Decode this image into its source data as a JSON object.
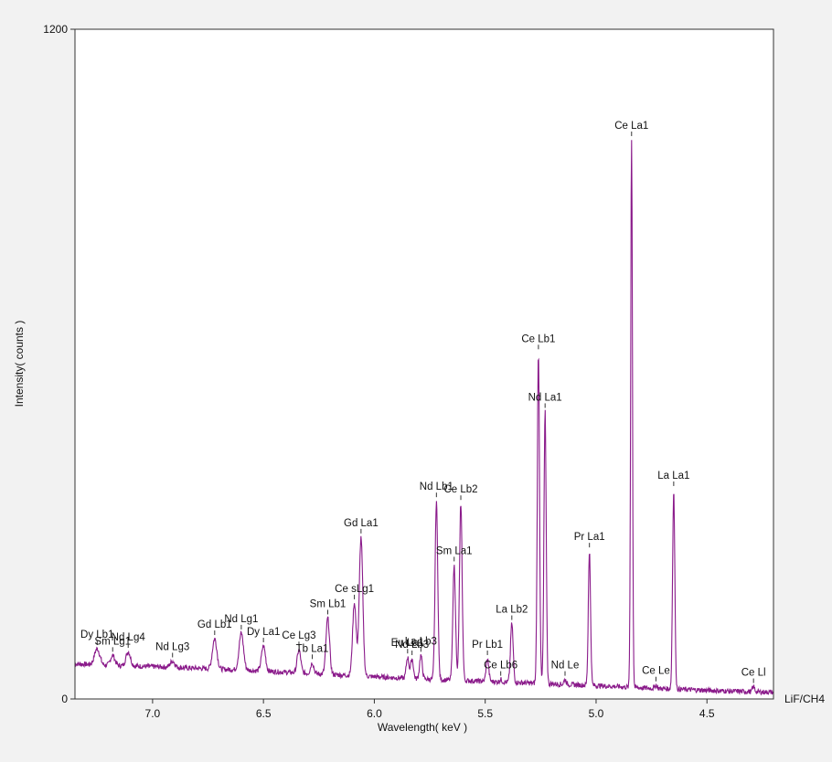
{
  "chart_data": {
    "type": "line",
    "title": "",
    "xlabel": "Wavelength( keV )",
    "ylabel": "Intensity( counts )",
    "crystal_label": "LiF/CH4",
    "x_axis_reversed": true,
    "xlim": [
      7.35,
      4.2
    ],
    "ylim": [
      0,
      1200
    ],
    "x_ticks": [
      7.0,
      6.5,
      6.0,
      5.5,
      5.0,
      4.5
    ],
    "x_tick_labels": [
      "7.0",
      "6.5",
      "6.0",
      "5.5",
      "5.0",
      "4.5"
    ],
    "y_ticks": [
      0,
      1200
    ],
    "y_tick_labels": [
      "0",
      "1200"
    ],
    "grid": false,
    "colors": {
      "series": "#8a1a8a",
      "plot_bg": "#ffffff",
      "page_bg": "#f2f2f2",
      "frame": "#333333"
    },
    "baseline": [
      [
        7.35,
        63
      ],
      [
        7.2,
        60
      ],
      [
        7.0,
        58
      ],
      [
        6.8,
        55
      ],
      [
        6.6,
        52
      ],
      [
        6.4,
        48
      ],
      [
        6.2,
        44
      ],
      [
        6.0,
        40
      ],
      [
        5.8,
        36
      ],
      [
        5.6,
        33
      ],
      [
        5.4,
        30
      ],
      [
        5.2,
        27
      ],
      [
        5.0,
        24
      ],
      [
        4.8,
        20
      ],
      [
        4.6,
        17
      ],
      [
        4.4,
        14
      ],
      [
        4.2,
        12
      ]
    ],
    "peaks": [
      {
        "label": "Dy Lb1",
        "x": 7.25,
        "y": 90,
        "w": 0.012
      },
      {
        "label": "Sm Lg1",
        "x": 7.18,
        "y": 78,
        "w": 0.01
      },
      {
        "label": "Nd Lg4",
        "x": 7.11,
        "y": 85,
        "w": 0.01
      },
      {
        "label": "Nd Lg3",
        "x": 6.91,
        "y": 68,
        "w": 0.01
      },
      {
        "label": "Gd Lb1",
        "x": 6.72,
        "y": 108,
        "w": 0.01
      },
      {
        "label": "Nd Lg1",
        "x": 6.6,
        "y": 118,
        "w": 0.01
      },
      {
        "label": "Dy La1",
        "x": 6.5,
        "y": 95,
        "w": 0.009
      },
      {
        "label": "Ce Lg3",
        "x": 6.34,
        "y": 88,
        "w": 0.008
      },
      {
        "label": "Tb La1",
        "x": 6.28,
        "y": 65,
        "w": 0.007
      },
      {
        "label": "Sm Lb1",
        "x": 6.21,
        "y": 145,
        "w": 0.008
      },
      {
        "label": "Ce sLg1",
        "x": 6.09,
        "y": 172,
        "w": 0.008
      },
      {
        "label": "Gd La1",
        "x": 6.06,
        "y": 290,
        "w": 0.008
      },
      {
        "label": "Eu La1",
        "x": 5.85,
        "y": 75,
        "w": 0.006
      },
      {
        "label": "Nd Lb3",
        "x": 5.83,
        "y": 72,
        "w": 0.006
      },
      {
        "label": "La Lb3",
        "x": 5.79,
        "y": 78,
        "w": 0.006
      },
      {
        "label": "Nd Lb1",
        "x": 5.72,
        "y": 355,
        "w": 0.006
      },
      {
        "label": "Sm La1",
        "x": 5.64,
        "y": 240,
        "w": 0.006
      },
      {
        "label": "Ce Lb2",
        "x": 5.61,
        "y": 350,
        "w": 0.006
      },
      {
        "label": "Pr Lb1",
        "x": 5.49,
        "y": 72,
        "w": 0.006
      },
      {
        "label": "Ce Lb6",
        "x": 5.43,
        "y": 35,
        "w": 0.005
      },
      {
        "label": "La Lb2",
        "x": 5.38,
        "y": 135,
        "w": 0.006
      },
      {
        "label": "Ce Lb1",
        "x": 5.26,
        "y": 620,
        "w": 0.005
      },
      {
        "label": "Nd La1",
        "x": 5.23,
        "y": 515,
        "w": 0.005
      },
      {
        "label": "Nd Le",
        "x": 5.14,
        "y": 35,
        "w": 0.005
      },
      {
        "label": "Pr La1",
        "x": 5.03,
        "y": 265,
        "w": 0.005
      },
      {
        "label": "Ce La1",
        "x": 4.84,
        "y": 1002,
        "w": 0.004
      },
      {
        "label": "Ce Le",
        "x": 4.73,
        "y": 25,
        "w": 0.005
      },
      {
        "label": "La La1",
        "x": 4.65,
        "y": 375,
        "w": 0.005
      },
      {
        "label": "Ce Ll",
        "x": 4.29,
        "y": 22,
        "w": 0.005
      }
    ]
  }
}
